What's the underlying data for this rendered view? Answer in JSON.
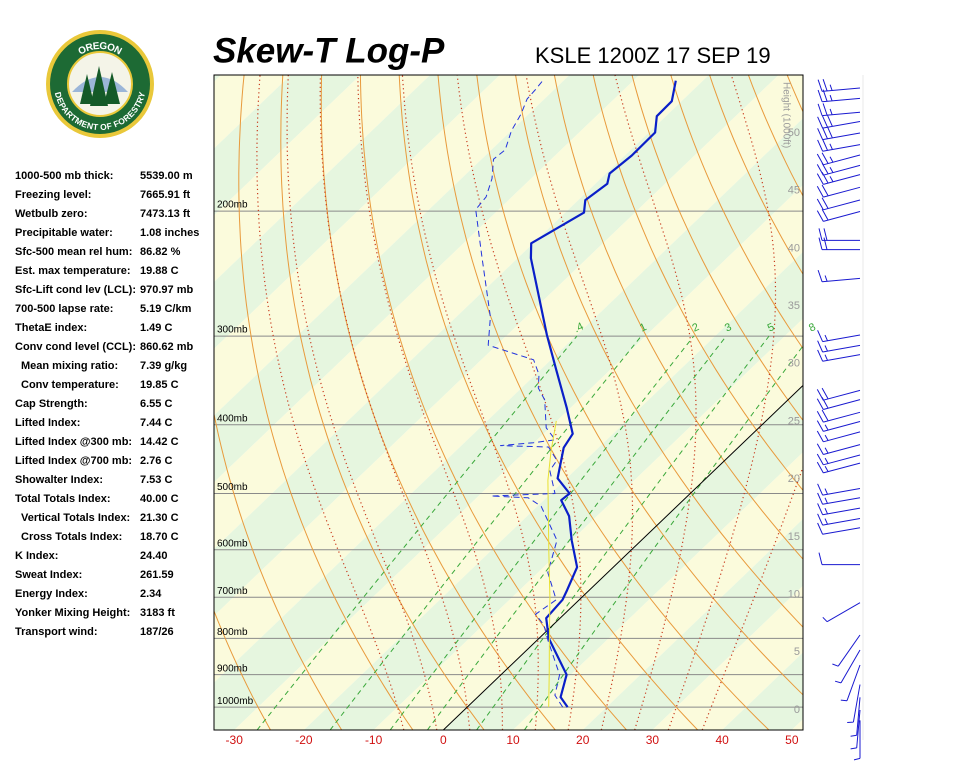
{
  "logo": {
    "top": "OREGON",
    "bottom": "DEPARTMENT OF FORESTRY"
  },
  "stats": [
    {
      "label": "1000-500 mb thick:",
      "value": "5539.00 m",
      "indent": false
    },
    {
      "label": "Freezing level:",
      "value": "7665.91 ft",
      "indent": false
    },
    {
      "label": "Wetbulb zero:",
      "value": "7473.13 ft",
      "indent": false
    },
    {
      "label": "Precipitable water:",
      "value": "1.08 inches",
      "indent": false
    },
    {
      "label": "Sfc-500 mean rel hum:",
      "value": "86.82 %",
      "indent": false
    },
    {
      "label": "Est. max temperature:",
      "value": "19.88 C",
      "indent": false
    },
    {
      "label": "Sfc-Lift cond lev (LCL):",
      "value": "970.97 mb",
      "indent": false
    },
    {
      "label": "700-500 lapse rate:",
      "value": "5.19 C/km",
      "indent": false
    },
    {
      "label": "ThetaE index:",
      "value": "1.49 C",
      "indent": false
    },
    {
      "label": "Conv cond level (CCL):",
      "value": "860.62 mb",
      "indent": false
    },
    {
      "label": "Mean mixing ratio:",
      "value": "7.39 g/kg",
      "indent": true
    },
    {
      "label": "Conv temperature:",
      "value": "19.85 C",
      "indent": true
    },
    {
      "label": "Cap Strength:",
      "value": "6.55 C",
      "indent": false
    },
    {
      "label": "Lifted Index:",
      "value": "7.44 C",
      "indent": false
    },
    {
      "label": "Lifted Index @300 mb:",
      "value": "14.42 C",
      "indent": false
    },
    {
      "label": "Lifted Index @700 mb:",
      "value": "2.76 C",
      "indent": false
    },
    {
      "label": "Showalter Index:",
      "value": "7.53 C",
      "indent": false
    },
    {
      "label": "Total Totals Index:",
      "value": "40.00 C",
      "indent": false
    },
    {
      "label": "Vertical Totals Index:",
      "value": "21.30 C",
      "indent": true
    },
    {
      "label": "Cross Totals Index:",
      "value": "18.70 C",
      "indent": true
    },
    {
      "label": "K Index:",
      "value": "24.40",
      "indent": false
    },
    {
      "label": "Sweat Index:",
      "value": "261.59",
      "indent": false
    },
    {
      "label": "Energy Index:",
      "value": "2.34",
      "indent": false
    },
    {
      "label": "Yonker Mixing Height:",
      "value": "3183 ft",
      "indent": false
    },
    {
      "label": "Transport wind:",
      "value": "187/26",
      "indent": false
    }
  ],
  "chart_data": {
    "type": "skew-t",
    "title": "Skew-T Log-P",
    "subtitle": "KSLE 1200Z 17 SEP 19",
    "xlim": [
      -32.9,
      51.6
    ],
    "xticks": [
      -30,
      -20,
      -10,
      0,
      10,
      20,
      30,
      40,
      50
    ],
    "ylim": [
      1077,
      128.6
    ],
    "log_y": true,
    "yticks": [
      {
        "value": 200,
        "label": "200mb"
      },
      {
        "value": 300,
        "label": "300mb"
      },
      {
        "value": 400,
        "label": "400mb"
      },
      {
        "value": 500,
        "label": "500mb"
      },
      {
        "value": 600,
        "label": "600mb"
      },
      {
        "value": 700,
        "label": "700mb"
      },
      {
        "value": 800,
        "label": "800mb"
      },
      {
        "value": 900,
        "label": "900mb"
      },
      {
        "value": 1000,
        "label": "1000mb"
      }
    ],
    "y2label": "Height (1000ft)",
    "y2lim": [
      -1.73,
      55.03
    ],
    "y2ticks": [
      0,
      5,
      10,
      15,
      20,
      25,
      30,
      35,
      40,
      45,
      50
    ],
    "highlight_isotherm": 0,
    "dry_adiabats": [
      -30,
      -20,
      -10,
      0,
      10,
      20,
      30,
      40,
      50,
      60,
      70,
      80,
      90,
      100,
      110,
      120,
      130,
      140,
      150,
      160
    ],
    "moist_adiabats": [
      -10,
      -5,
      0,
      5,
      10,
      15,
      20,
      25,
      30,
      35
    ],
    "mixing_ratios": [
      {
        "value": 0.4,
        "label": ".4"
      },
      1,
      2,
      3,
      5,
      8
    ],
    "series": [
      {
        "color": "#0a1fc8",
        "style": "solid",
        "pressure": [
          1000,
          968,
          900,
          800,
          749,
          706,
          684,
          635,
          582,
          538,
          511,
          500,
          476,
          431,
          412,
          379,
          335,
          299,
          233,
          222,
          201,
          193,
          183,
          177,
          167,
          155,
          147,
          140,
          131
        ],
        "values": [
          14.4,
          11.9,
          9.4,
          1.4,
          -2.0,
          -2.4,
          -3.2,
          -5.2,
          -10.0,
          -14.0,
          -17.5,
          -17.3,
          -21.3,
          -25.0,
          -25.8,
          -30.5,
          -37.7,
          -44.3,
          -58.1,
          -60.3,
          -57.3,
          -59.0,
          -58.3,
          -59.5,
          -59.0,
          -59.1,
          -61.3,
          -61.4,
          -63.9
        ]
      },
      {
        "color": "#2233dd",
        "style": "dashed",
        "pressure": [
          1000,
          962,
          900,
          804,
          766,
          740,
          706,
          646,
          582,
          521,
          507,
          504,
          500,
          464,
          449,
          430,
          428,
          424,
          420,
          404,
          369,
          355,
          340,
          324,
          309,
          282,
          233,
          199,
          191,
          180,
          169,
          164,
          154,
          146,
          139,
          135,
          131
        ],
        "values": [
          13.7,
          10.8,
          8.4,
          1.5,
          -1.3,
          -4.1,
          -3.3,
          -8.6,
          -12.1,
          -19.5,
          -22.6,
          -28.2,
          -19.4,
          -23.6,
          -24.1,
          -27.3,
          -34.4,
          -30.1,
          -27.4,
          -30.5,
          -34.9,
          -37.6,
          -39.5,
          -42.5,
          -51.2,
          -55.1,
          -65.1,
          -73.3,
          -73.7,
          -75.6,
          -78.3,
          -78.0,
          -80.0,
          -81.1,
          -82.5,
          -82.7,
          -83.0
        ]
      },
      {
        "color": "#e8e030",
        "style": "thin",
        "pressure": [
          1000,
          900,
          800,
          700,
          601,
          479,
          436,
          395
        ],
        "values": [
          11.7,
          6.9,
          1.5,
          -4.6,
          -11.8,
          -22.4,
          -26.3,
          -30.1
        ]
      }
    ],
    "wind": {
      "color": "#1a1ad0",
      "height": [
        53.9,
        53.0,
        51.8,
        51.0,
        50.0,
        49.0,
        48.1,
        47.2,
        46.4,
        45.3,
        44.2,
        43.2,
        40.7,
        39.9,
        37.4,
        32.5,
        31.6,
        30.8,
        27.7,
        26.9,
        25.8,
        25.0,
        24.1,
        23.0,
        22.1,
        21.4,
        19.2,
        18.4,
        17.5,
        16.6,
        15.8,
        12.6,
        9.3,
        6.5,
        5.2,
        3.9,
        2.2,
        1.1,
        0,
        -0.9
      ],
      "direction": [
        265,
        265,
        265,
        260,
        260,
        260,
        255,
        255,
        255,
        255,
        255,
        255,
        270,
        270,
        265,
        260,
        260,
        260,
        255,
        255,
        255,
        255,
        255,
        255,
        255,
        255,
        260,
        260,
        260,
        260,
        260,
        270,
        240,
        215,
        210,
        200,
        190,
        185,
        185,
        180
      ],
      "speed": [
        25,
        25,
        25,
        30,
        30,
        25,
        25,
        25,
        25,
        20,
        20,
        20,
        20,
        20,
        15,
        15,
        15,
        15,
        20,
        20,
        20,
        15,
        15,
        15,
        15,
        15,
        15,
        15,
        15,
        15,
        10,
        10,
        5,
        5,
        5,
        5,
        5,
        5,
        5,
        5
      ]
    }
  }
}
